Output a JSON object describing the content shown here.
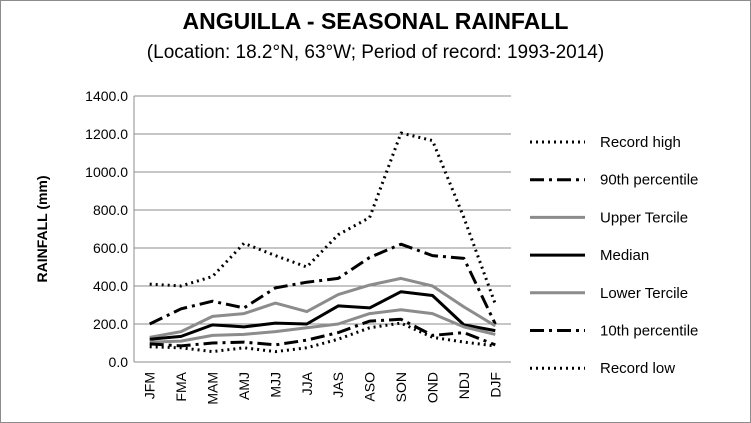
{
  "chart_data": {
    "type": "line",
    "title": "ANGUILLA - SEASONAL RAINFALL",
    "subtitle": "(Location: 18.2°N, 63°W; Period of record: 1993-2014)",
    "xlabel": "",
    "ylabel": "RAINFALL (mm)",
    "ylim": [
      0,
      1400
    ],
    "yticks": [
      "0.0",
      "200.0",
      "400.0",
      "600.0",
      "800.0",
      "1000.0",
      "1200.0",
      "1400.0"
    ],
    "ytick_values": [
      0,
      200,
      400,
      600,
      800,
      1000,
      1200,
      1400
    ],
    "grid": "horizontal",
    "legend_position": "right",
    "categories": [
      "JFM",
      "FMA",
      "MAM",
      "AMJ",
      "MJJ",
      "JJA",
      "JAS",
      "ASO",
      "SON",
      "OND",
      "NDJ",
      "DJF"
    ],
    "series": [
      {
        "name": "Record high",
        "color": "#000000",
        "style": "dotted",
        "values": [
          410,
          400,
          450,
          625,
          560,
          500,
          670,
          760,
          1205,
          1165,
          760,
          305
        ]
      },
      {
        "name": "90th percentile",
        "color": "#000000",
        "style": "dashdot",
        "values": [
          200,
          280,
          320,
          285,
          390,
          420,
          440,
          550,
          620,
          560,
          545,
          200
        ]
      },
      {
        "name": "Upper Tercile",
        "color": "#8c8c8c",
        "style": "solid",
        "values": [
          130,
          160,
          240,
          255,
          310,
          265,
          355,
          405,
          440,
          400,
          290,
          190
        ]
      },
      {
        "name": "Median",
        "color": "#000000",
        "style": "solid",
        "values": [
          120,
          135,
          195,
          185,
          205,
          200,
          295,
          285,
          370,
          350,
          195,
          165
        ]
      },
      {
        "name": "Lower Tercile",
        "color": "#8c8c8c",
        "style": "solid",
        "values": [
          105,
          110,
          140,
          145,
          160,
          180,
          200,
          255,
          275,
          255,
          185,
          145
        ]
      },
      {
        "name": "10th percentile",
        "color": "#000000",
        "style": "dashdot",
        "values": [
          95,
          85,
          100,
          105,
          90,
          115,
          155,
          215,
          225,
          140,
          155,
          90
        ]
      },
      {
        "name": "Record low",
        "color": "#000000",
        "style": "dotted",
        "values": [
          80,
          75,
          55,
          75,
          55,
          75,
          120,
          180,
          205,
          130,
          105,
          85
        ]
      }
    ]
  }
}
